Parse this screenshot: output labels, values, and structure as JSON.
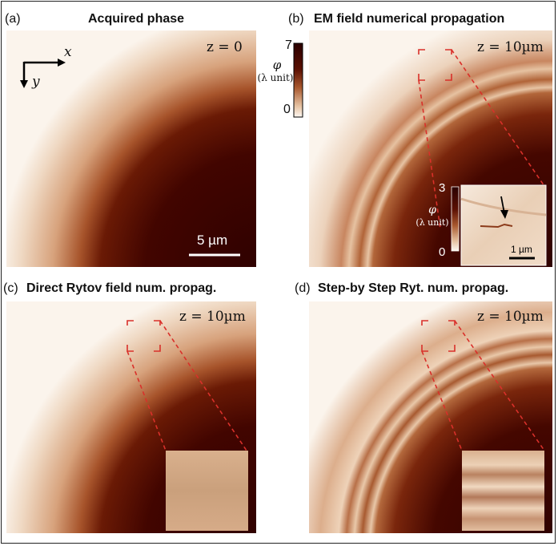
{
  "panels": {
    "a": {
      "letter": "(a)",
      "title": "Acquired phase",
      "z": "z = 0",
      "scalebar": "5 µm"
    },
    "b": {
      "letter": "(b)",
      "title": "EM field numerical propagation",
      "z": "z = 10µm"
    },
    "c": {
      "letter": "(c)",
      "title": "Direct Rytov field num. propag.",
      "z": "z = 10µm"
    },
    "d": {
      "letter": "(d)",
      "title": "Step-by Step Ryt. num. propag.",
      "z": "z = 10µm"
    }
  },
  "axes": {
    "x": "x",
    "y": "y"
  },
  "colorbar_main": {
    "symbol": "φ",
    "unit": "(λ unit)",
    "max": "7",
    "min": "0"
  },
  "colorbar_inset": {
    "symbol": "φ",
    "unit": "(λ unit)",
    "max": "3",
    "min": "0",
    "scalebar": "1 µm"
  },
  "colors": {
    "dark": "#3a0200",
    "mid": "#9a4520",
    "light": "#f8efe6",
    "zoom_box": "#d9302a"
  }
}
